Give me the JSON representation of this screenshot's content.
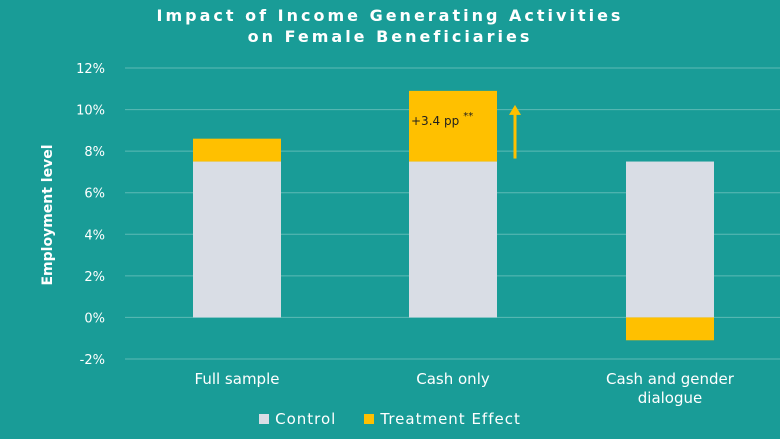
{
  "chart_data": {
    "type": "bar",
    "stacked": true,
    "title": [
      "Impact of Income Generating Activities",
      "on Female Beneficiaries"
    ],
    "xlabel": "",
    "ylabel": "Employment level",
    "ylim": [
      -0.02,
      0.12
    ],
    "yticks": [
      -0.02,
      0,
      0.02,
      0.04,
      0.06,
      0.08,
      0.1,
      0.12
    ],
    "ytick_labels": [
      "-2%",
      "0%",
      "2%",
      "4%",
      "6%",
      "8%",
      "10%",
      "12%"
    ],
    "grid": true,
    "categories": [
      "Full sample",
      "Cash only",
      "Cash and gender dialogue"
    ],
    "category_lines": [
      [
        "Full sample"
      ],
      [
        "Cash only"
      ],
      [
        "Cash and gender",
        "dialogue"
      ]
    ],
    "series": [
      {
        "name": "Control",
        "values": [
          0.075,
          0.075,
          0.075
        ]
      },
      {
        "name": "Treatment Effect",
        "values": [
          0.011,
          0.034,
          -0.011
        ]
      }
    ],
    "annotations": [
      {
        "category": "Cash only",
        "text": "+3.4 pp",
        "superscript": "**"
      }
    ],
    "legend_position": "bottom"
  },
  "colors": {
    "background": "#199c97",
    "Control": "#d9dde5",
    "Treatment Effect": "#ffc000",
    "gridline": "#5dbab5",
    "arrow": "#ffc000"
  }
}
